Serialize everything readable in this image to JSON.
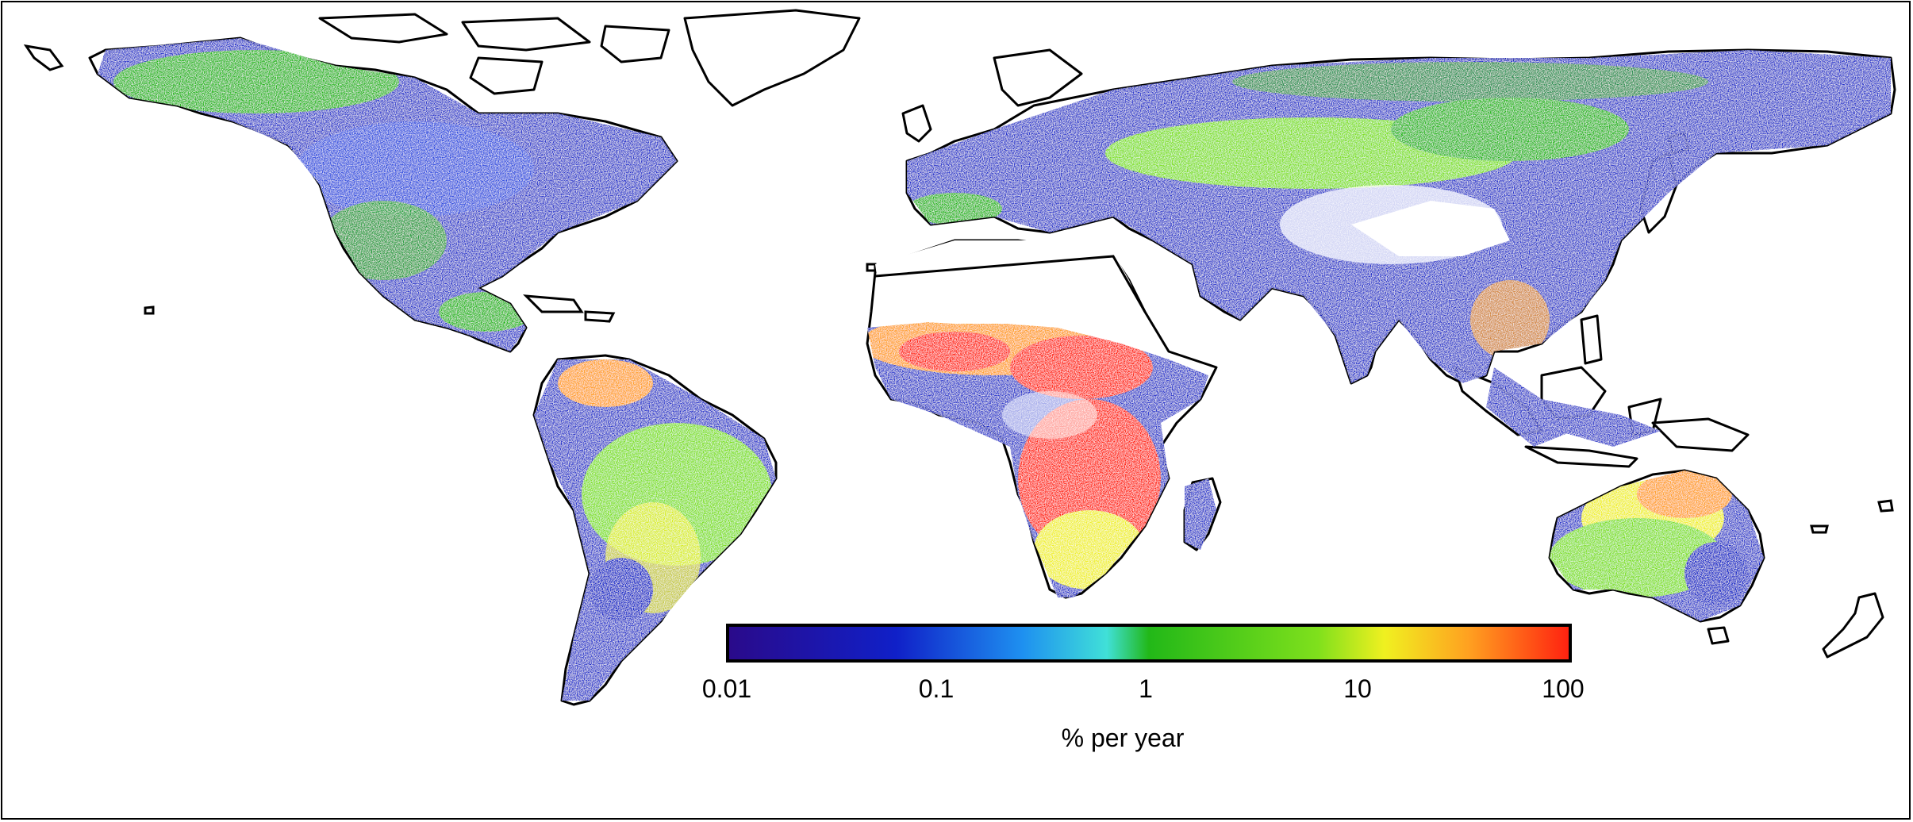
{
  "colorbar": {
    "label": "% per year",
    "scale": "log",
    "range": [
      0.01,
      100
    ],
    "ticks": [
      "0.01",
      "0.1",
      "1",
      "10",
      "100"
    ],
    "colors": [
      "#2a0a8a",
      "#1020c8",
      "#1e90f0",
      "#40e0d8",
      "#22b818",
      "#7fe01c",
      "#f0f020",
      "#ffa020",
      "#ff2010"
    ]
  },
  "map": {
    "projection": "equirectangular",
    "background": "#ffffff",
    "coastline_color": "#000000",
    "no_data_color": "#ffffff"
  }
}
